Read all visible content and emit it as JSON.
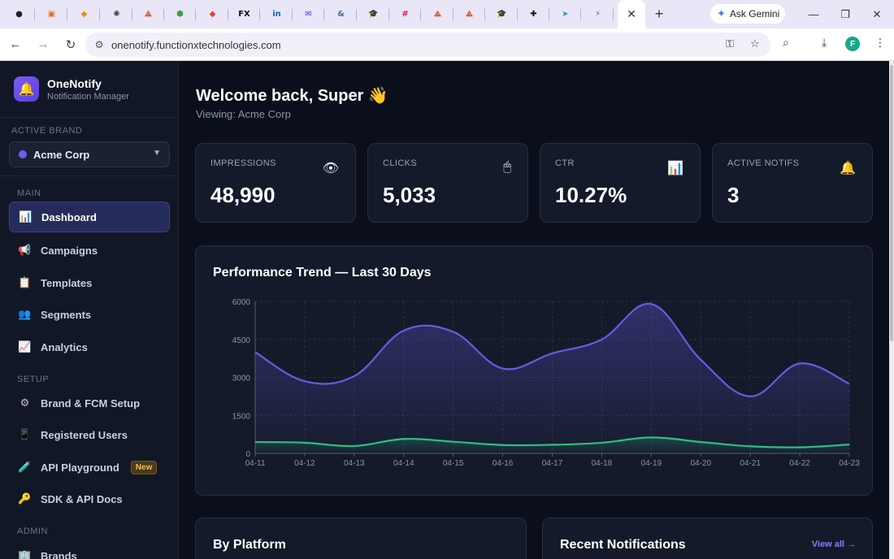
{
  "browser": {
    "tabs": [
      {
        "icon": "github-icon",
        "glyph": "●",
        "color": "#222222"
      },
      {
        "icon": "blocks-icon",
        "glyph": "▣",
        "color": "#e5701f"
      },
      {
        "icon": "package-icon",
        "glyph": "◆",
        "color": "#f08a24"
      },
      {
        "icon": "openai-icon",
        "glyph": "✺",
        "color": "#444444"
      },
      {
        "icon": "app-a-icon",
        "glyph": "⟁",
        "color": "#d9542a"
      },
      {
        "icon": "hex-icon",
        "glyph": "⬢",
        "color": "#3aa14a"
      },
      {
        "icon": "git-icon",
        "glyph": "◆",
        "color": "#e0412c"
      },
      {
        "icon": "fx-icon",
        "glyph": "FX",
        "color": "#111111"
      },
      {
        "icon": "linkedin-icon",
        "glyph": "in",
        "color": "#0a66c2"
      },
      {
        "icon": "mail-icon",
        "glyph": "✉",
        "color": "#5c3bd6"
      },
      {
        "icon": "ampersand-icon",
        "glyph": "&",
        "color": "#4a6ea8"
      },
      {
        "icon": "graduation-icon",
        "glyph": "🎓",
        "color": "#333333"
      },
      {
        "icon": "slack-icon",
        "glyph": "#",
        "color": "#e01e5a"
      },
      {
        "icon": "app-b-icon",
        "glyph": "⟁",
        "color": "#d9542a"
      },
      {
        "icon": "app-c-icon",
        "glyph": "⟁",
        "color": "#d9542a"
      },
      {
        "icon": "graduation-icon-2",
        "glyph": "🎓",
        "color": "#333333"
      },
      {
        "icon": "cross-icon",
        "glyph": "✚",
        "color": "#111111"
      },
      {
        "icon": "send-icon",
        "glyph": "➤",
        "color": "#2a9ad6"
      },
      {
        "icon": "bolt-icon",
        "glyph": "⚡",
        "color": "#4b5bd6"
      }
    ],
    "active_tab_close": "✕",
    "new_tab": "+",
    "gemini_label": "Ask Gemini",
    "url": "onenotify.functionxtechnologies.com",
    "profile_initial": "F"
  },
  "sidebar": {
    "app_name": "OneNotify",
    "app_subtitle": "Notification Manager",
    "active_brand_heading": "ACTIVE BRAND",
    "active_brand": "Acme Corp",
    "sections": {
      "main": "MAIN",
      "setup": "SETUP",
      "admin": "ADMIN"
    },
    "items": [
      {
        "label": "Dashboard",
        "icon": "📊"
      },
      {
        "label": "Campaigns",
        "icon": "📢"
      },
      {
        "label": "Templates",
        "icon": "📋"
      },
      {
        "label": "Segments",
        "icon": "👥"
      },
      {
        "label": "Analytics",
        "icon": "📈"
      },
      {
        "label": "Brand & FCM Setup",
        "icon": "⚙"
      },
      {
        "label": "Registered Users",
        "icon": "📱"
      },
      {
        "label": "API Playground",
        "icon": "🧪"
      },
      {
        "label": "SDK & API Docs",
        "icon": "🔑"
      },
      {
        "label": "Brands",
        "icon": "🏢"
      }
    ],
    "new_badge": "New"
  },
  "main": {
    "welcome": "Welcome back, Super 👋",
    "viewing": "Viewing: Acme Corp",
    "stats": [
      {
        "label": "IMPRESSIONS",
        "value": "48,990",
        "icon": "👁"
      },
      {
        "label": "CLICKS",
        "value": "5,033",
        "icon": "🖱"
      },
      {
        "label": "CTR",
        "value": "10.27%",
        "icon": "📊"
      },
      {
        "label": "ACTIVE NOTIFS",
        "value": "3",
        "icon": "🔔"
      }
    ],
    "by_platform_title": "By Platform",
    "recent_title": "Recent Notifications",
    "view_all": "View all →"
  },
  "chart_data": {
    "type": "line",
    "title": "Performance Trend — Last 30 Days",
    "x": [
      "04-11",
      "04-12",
      "04-13",
      "04-14",
      "04-15",
      "04-16",
      "04-17",
      "04-18",
      "04-19",
      "04-20",
      "04-21",
      "04-22",
      "04-23"
    ],
    "series": [
      {
        "values": [
          4000,
          2850,
          3050,
          4850,
          4800,
          3350,
          3950,
          4500,
          5900,
          3700,
          2250,
          3550,
          2750
        ],
        "color": "#6a5ae0"
      },
      {
        "values": [
          450,
          420,
          290,
          570,
          460,
          330,
          340,
          420,
          630,
          450,
          280,
          240,
          350
        ],
        "color": "#2dbf7f"
      }
    ],
    "yticks": [
      0,
      1500,
      3000,
      4500,
      6000
    ],
    "ylim": [
      0,
      6000
    ],
    "grid": true
  }
}
